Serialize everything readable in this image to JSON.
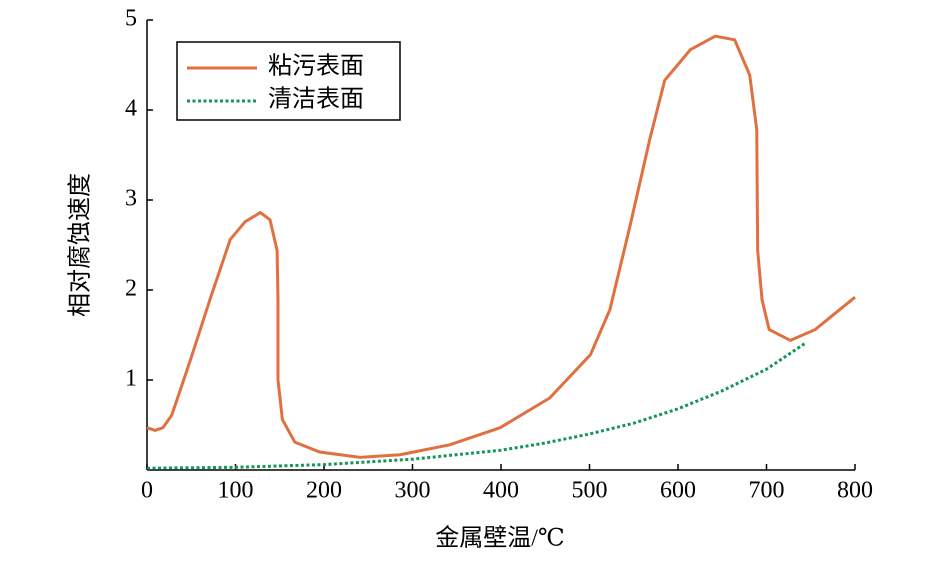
{
  "chart_data": {
    "type": "line",
    "xlabel": "金属壁温/℃",
    "ylabel": "相对腐蚀速度",
    "xlim": [
      0,
      800
    ],
    "xticks": [
      0,
      100,
      200,
      300,
      400,
      500,
      600,
      700,
      800
    ],
    "ylim": [
      0,
      5
    ],
    "yticks": [
      1,
      2,
      3,
      4,
      5
    ],
    "legend": "upper left",
    "series": [
      {
        "name": "粘污表面",
        "color": "#e07040",
        "style": "solid",
        "x": [
          0,
          9,
          18,
          28,
          49,
          71,
          94,
          111,
          128,
          139,
          147,
          148,
          148,
          153,
          167,
          195,
          241,
          286,
          342,
          399,
          455,
          501,
          523,
          546,
          568,
          585,
          614,
          642,
          664,
          681,
          689,
          690,
          695,
          703,
          727,
          755,
          800
        ],
        "values": [
          0.47,
          0.44,
          0.47,
          0.61,
          1.22,
          1.89,
          2.56,
          2.76,
          2.86,
          2.78,
          2.44,
          1.89,
          1.0,
          0.56,
          0.31,
          0.2,
          0.14,
          0.17,
          0.28,
          0.47,
          0.8,
          1.28,
          1.78,
          2.72,
          3.67,
          4.33,
          4.67,
          4.82,
          4.78,
          4.39,
          3.78,
          2.44,
          1.89,
          1.56,
          1.44,
          1.56,
          1.92
        ]
      },
      {
        "name": "清洁表面",
        "color": "#14965a",
        "style": "dotted",
        "x": [
          0,
          100,
          200,
          300,
          400,
          450,
          500,
          550,
          600,
          650,
          700,
          744
        ],
        "values": [
          0.02,
          0.03,
          0.06,
          0.12,
          0.22,
          0.3,
          0.4,
          0.52,
          0.68,
          0.88,
          1.12,
          1.41
        ]
      }
    ]
  }
}
